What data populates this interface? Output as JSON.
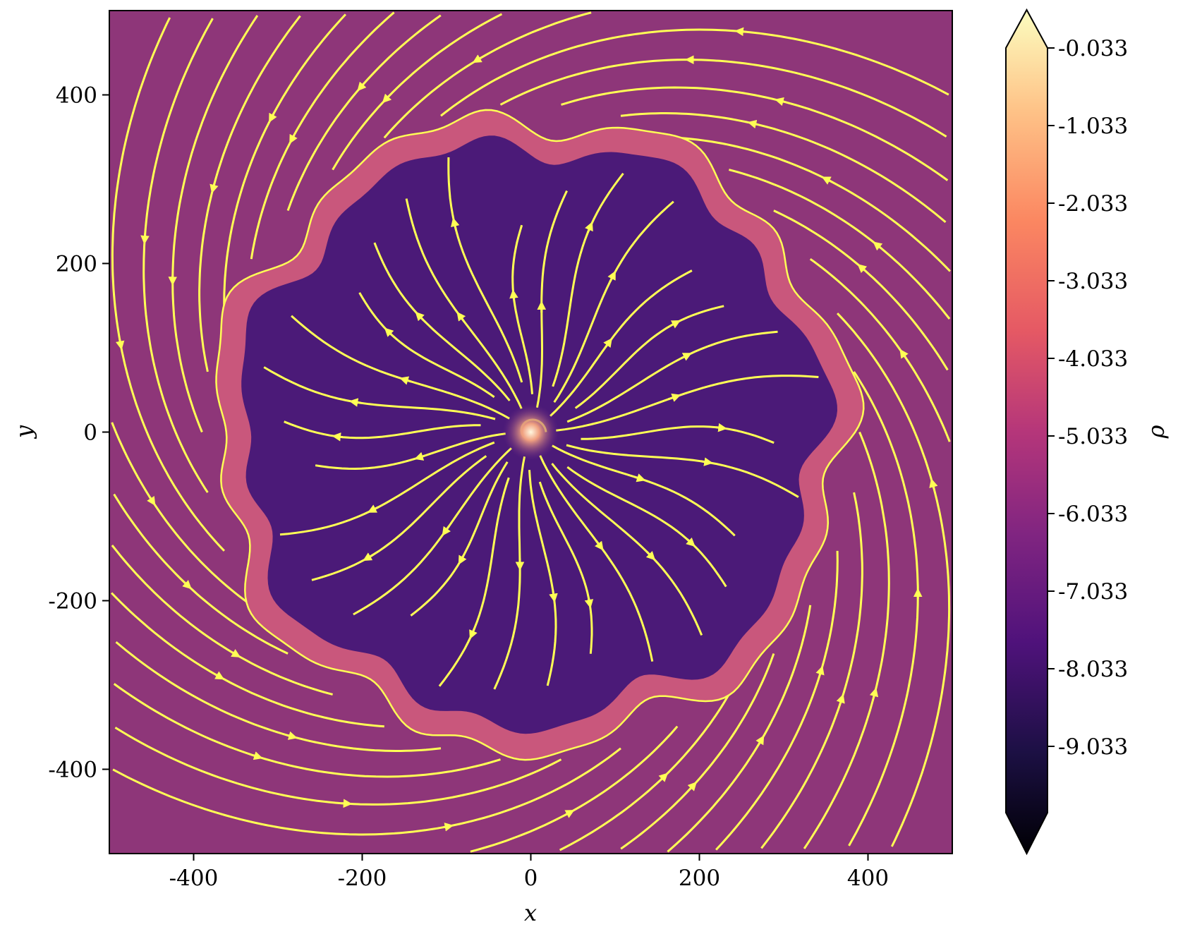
{
  "chart_data": {
    "type": "heatmap",
    "title": "",
    "xlabel": "x",
    "ylabel": "y",
    "xlim": [
      -500,
      500
    ],
    "ylim": [
      -500,
      500
    ],
    "xticks": [
      "-400",
      "-200",
      "0",
      "200",
      "400"
    ],
    "xtick_values": [
      -400,
      -200,
      0,
      200,
      400
    ],
    "yticks": [
      "400",
      "200",
      "0",
      "-200",
      "-400"
    ],
    "ytick_values": [
      400,
      200,
      0,
      -200,
      -400
    ],
    "colorbar": {
      "label": "ρ",
      "colormap": "magma",
      "extend": "both",
      "range": [
        -9.9,
        -0.033
      ],
      "ticks": [
        "-0.033",
        "-1.033",
        "-2.033",
        "-3.033",
        "-4.033",
        "-5.033",
        "-6.033",
        "-7.033",
        "-8.033",
        "-9.033"
      ],
      "tick_values": [
        -0.033,
        -1.033,
        -2.033,
        -3.033,
        -4.033,
        -5.033,
        -6.033,
        -7.033,
        -8.033,
        -9.033
      ]
    },
    "field": {
      "ambient_density": -5.6,
      "cavity_density": -7.6,
      "shell_density": -4.2,
      "cavity_radius": 365,
      "center": [
        0,
        0
      ]
    },
    "streamlines": {
      "color": "#ffff55",
      "outer_flow": "counterclockwise spiral",
      "inner_flow": "radial outflow"
    }
  },
  "colors": {
    "ambient": "#8e3679",
    "cavity": "#4b1a78",
    "shell": "#c9577c",
    "streamline": "#ffff55"
  }
}
